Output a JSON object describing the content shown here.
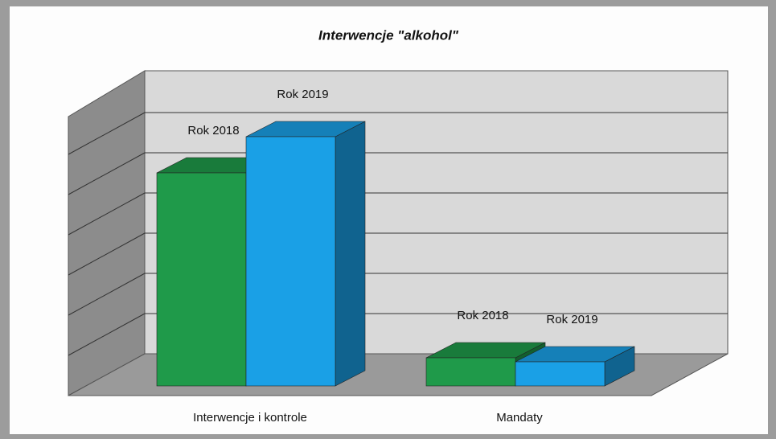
{
  "chart_data": {
    "type": "bar3d",
    "title": "Interwencje \"alkohol\"",
    "categories": [
      "Interwencje  i kontrole",
      "Mandaty"
    ],
    "series": [
      {
        "name": "Rok 2018",
        "color": "#1f9a4a",
        "values": [
          5.3,
          0.7
        ]
      },
      {
        "name": "Rok 2019",
        "color": "#1aa0e6",
        "values": [
          6.2,
          0.6
        ]
      }
    ],
    "ylim": [
      0,
      7
    ],
    "yticks": [
      0,
      1,
      2,
      3,
      4,
      5,
      6,
      7
    ],
    "grid": true
  }
}
